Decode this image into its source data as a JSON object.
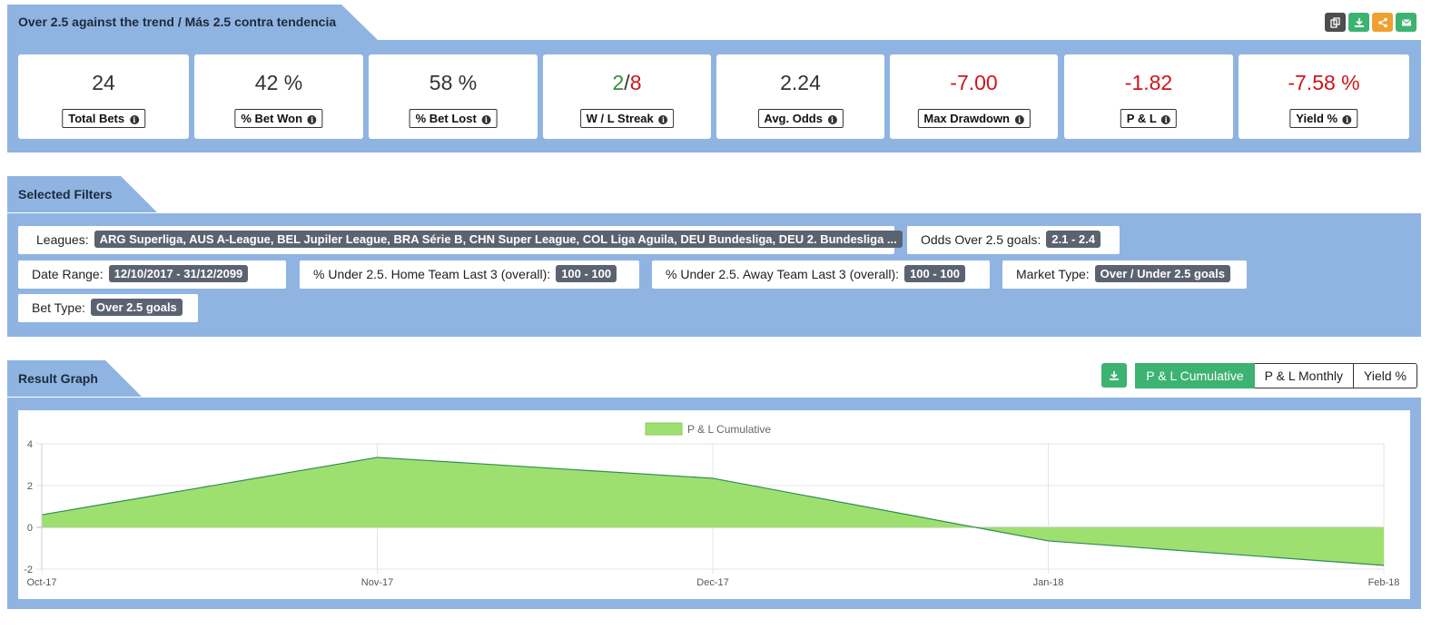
{
  "summary": {
    "title": "Over 2.5 against the trend / Más 2.5 contra tendencia",
    "actions": [
      {
        "name": "copy-icon",
        "color": "#4d4d4d"
      },
      {
        "name": "download-icon",
        "color": "#3cb371"
      },
      {
        "name": "share-icon",
        "color": "#f0a030"
      },
      {
        "name": "email-icon",
        "color": "#3cb371"
      }
    ],
    "stats": [
      {
        "value": "24",
        "label": "Total Bets"
      },
      {
        "value": "42 %",
        "label": "% Bet Won"
      },
      {
        "value": "58 %",
        "label": "% Bet Lost"
      },
      {
        "value_win": "2",
        "value_sep": "/",
        "value_loss": "8",
        "label": "W / L Streak"
      },
      {
        "value": "2.24",
        "label": "Avg. Odds"
      },
      {
        "value": "-7.00",
        "label": "Max Drawdown"
      },
      {
        "value": "-1.82",
        "label": "P & L"
      },
      {
        "value": "-7.58 %",
        "label": "Yield %"
      }
    ],
    "info_glyph": "i"
  },
  "filters": {
    "title": "Selected Filters",
    "items": [
      {
        "label": "Leagues:",
        "value": "ARG Superliga, AUS A-League, BEL Jupiler League, BRA Série B, CHN Super League, COL Liga Aguila, DEU Bundesliga, DEU 2. Bundesliga ..."
      },
      {
        "label": "Odds Over 2.5 goals:",
        "value": "2.1 - 2.4"
      },
      {
        "label": "Date Range:",
        "value": "12/10/2017 - 31/12/2099"
      },
      {
        "label": "% Under 2.5. Home Team Last 3 (overall):",
        "value": "100 - 100"
      },
      {
        "label": "% Under 2.5. Away Team Last 3 (overall):",
        "value": "100 - 100"
      },
      {
        "label": "Market Type:",
        "value": "Over / Under 2.5 goals"
      },
      {
        "label": "Bet Type:",
        "value": "Over 2.5 goals"
      }
    ]
  },
  "graph": {
    "title": "Result Graph",
    "buttons": [
      "P & L Cumulative",
      "P & L Monthly",
      "Yield %"
    ],
    "active_button": "P & L Cumulative"
  },
  "chart_data": {
    "type": "area",
    "x": [
      "Oct-17",
      "Nov-17",
      "Dec-17",
      "Jan-18",
      "Feb-18"
    ],
    "series": [
      {
        "name": "P & L Cumulative",
        "values": [
          0.6,
          3.35,
          2.35,
          -0.65,
          -1.82
        ],
        "color": "#9ee06f",
        "line_color": "#2e8b57"
      }
    ],
    "ylim": [
      -2,
      4
    ],
    "yticks": [
      -2,
      0,
      2,
      4
    ],
    "grid": true,
    "legend": "top-center"
  },
  "colors": {
    "panel": "#8fb4e2",
    "negative": "#d0141a",
    "positive": "#3c8a3c",
    "accent": "#3cb371"
  }
}
